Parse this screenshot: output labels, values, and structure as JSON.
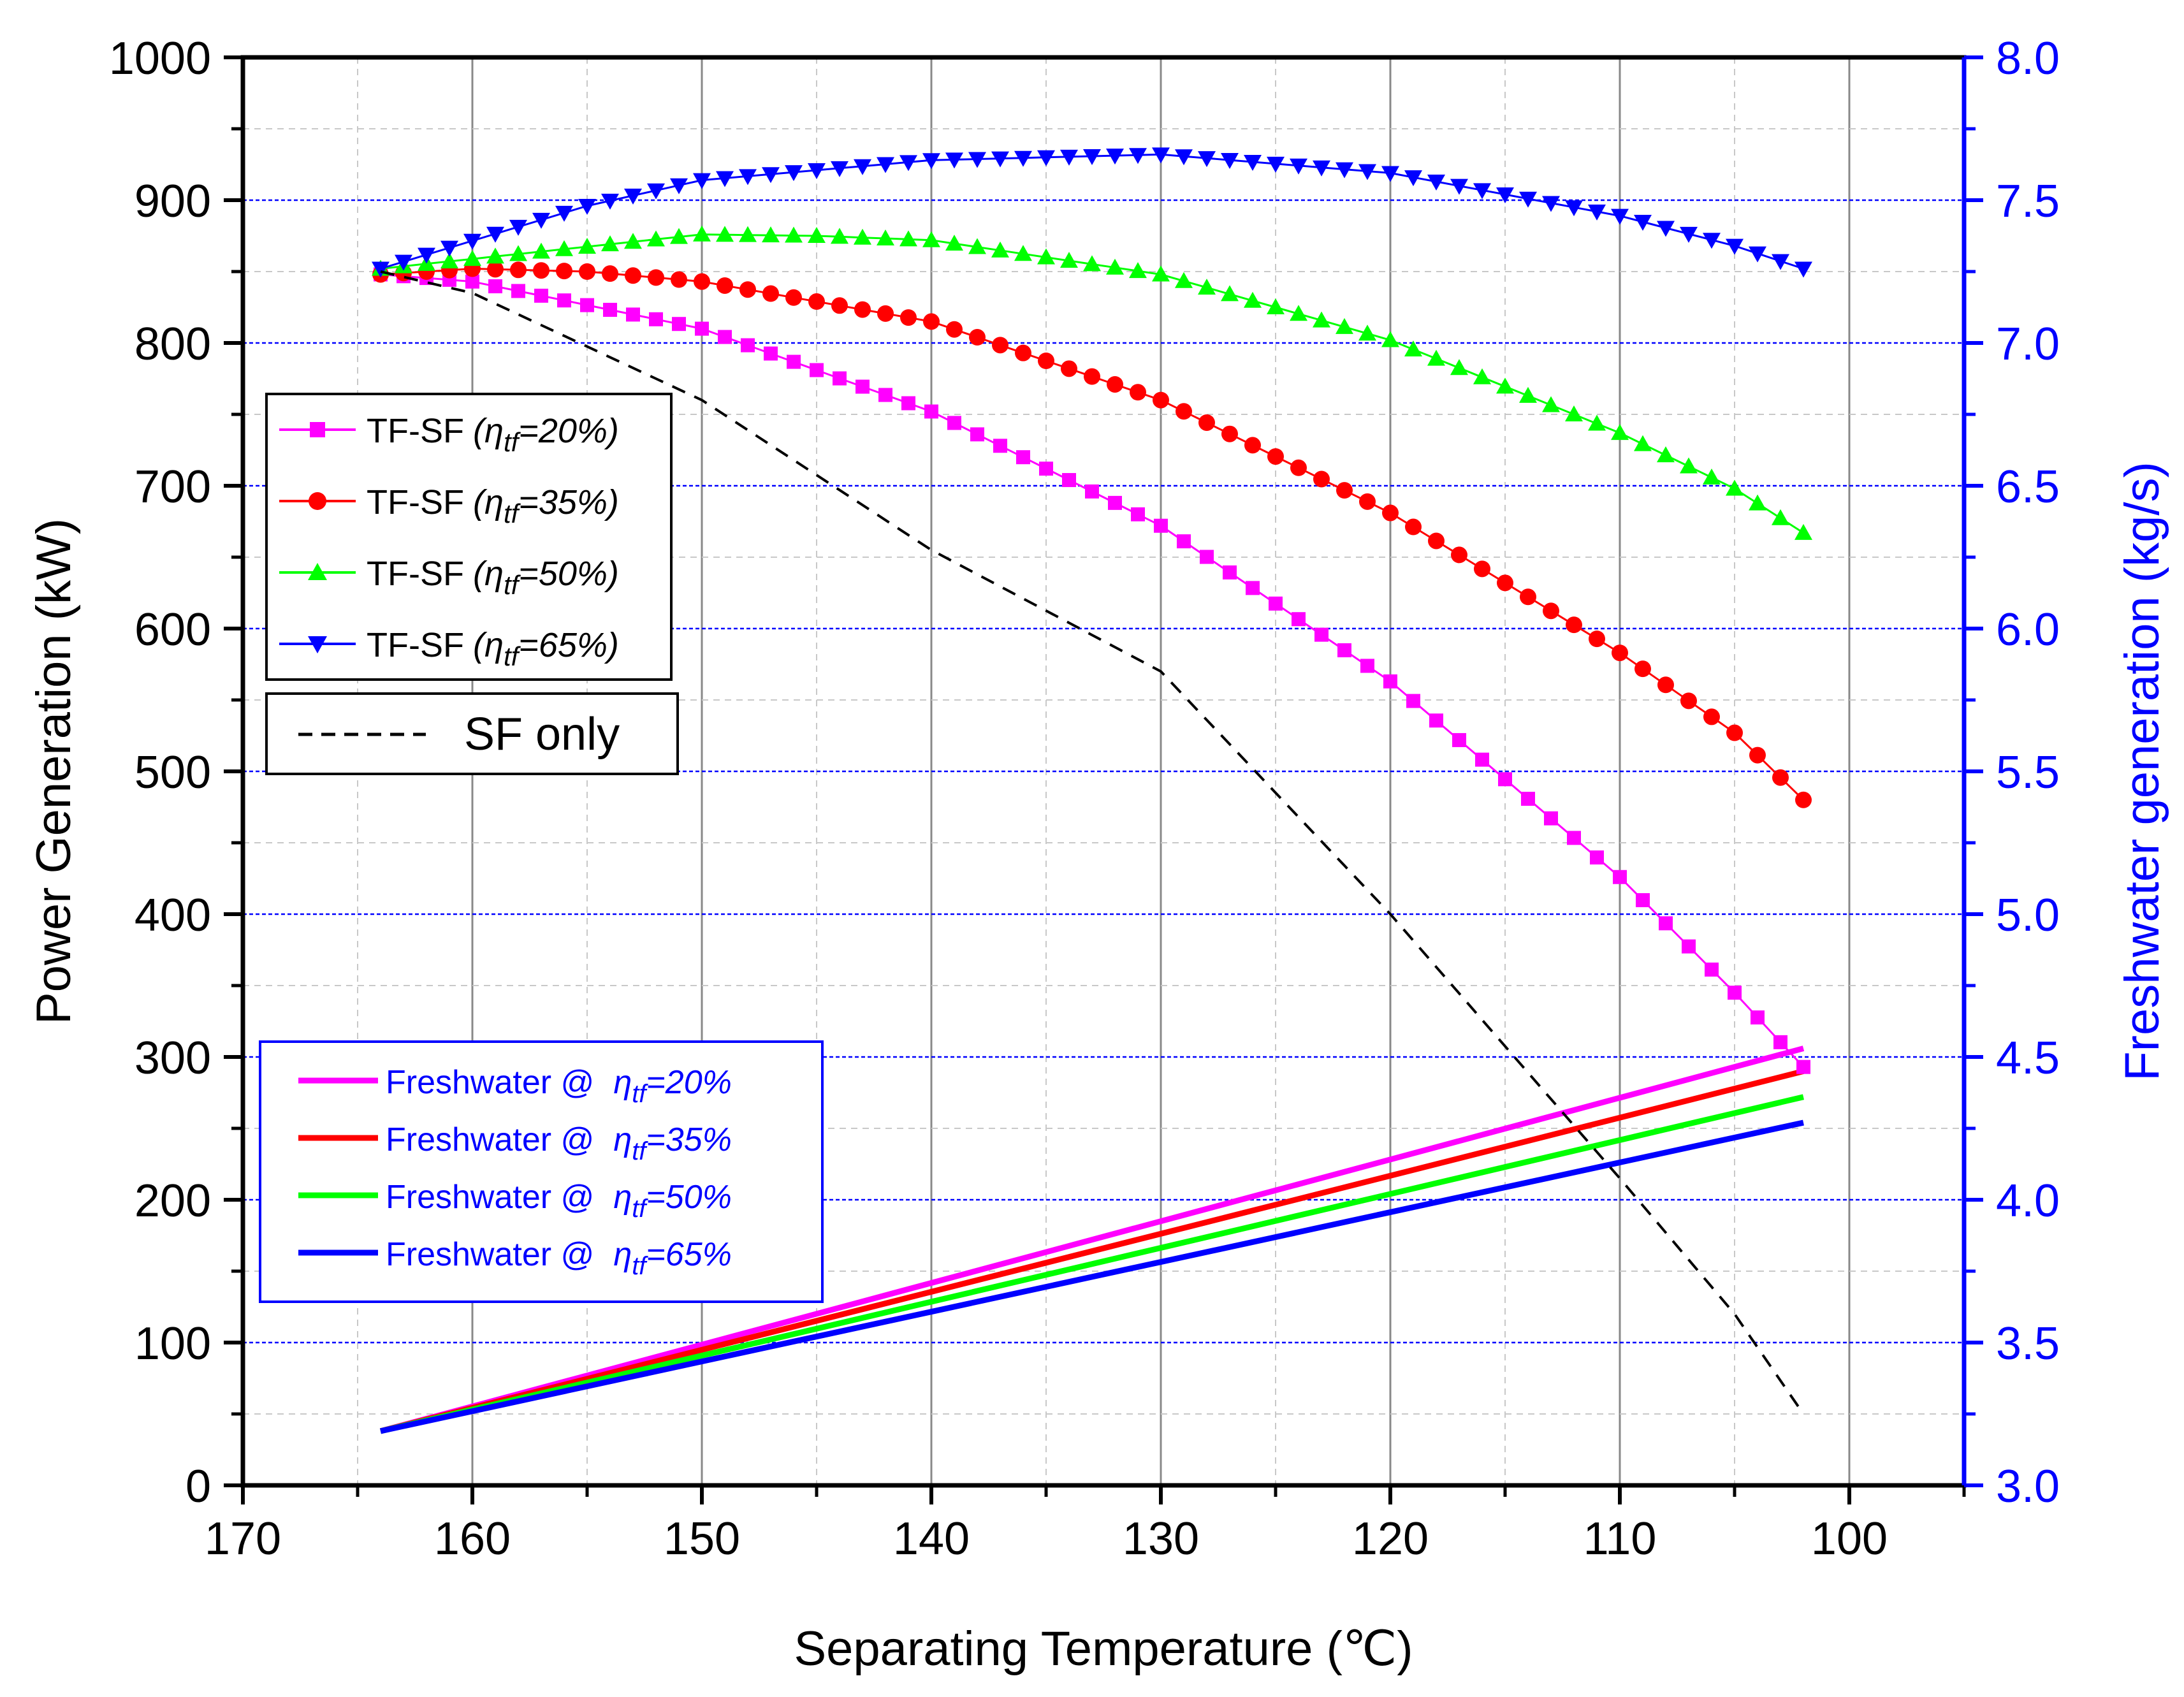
{
  "chart_data": {
    "type": "line",
    "title": "",
    "xlabel": "Separating Temperature (℃)",
    "ylabel": "Power Generation (kW)",
    "y2label": "Freshwater generation (kg/s)",
    "xlim": [
      170,
      95
    ],
    "x_reversed": true,
    "ylim": [
      0,
      1000
    ],
    "y2lim": [
      3.0,
      8.0
    ],
    "xticks": [
      170,
      160,
      150,
      140,
      130,
      120,
      110,
      100
    ],
    "yticks": [
      0,
      100,
      200,
      300,
      400,
      500,
      600,
      700,
      800,
      900,
      1000
    ],
    "y2ticks": [
      "3.0",
      "3.5",
      "4.0",
      "4.5",
      "5.0",
      "5.5",
      "6.0",
      "6.5",
      "7.0",
      "7.5",
      "8.0"
    ],
    "grid": true,
    "colors": {
      "axis": "#000000",
      "right_axis": "#0000ff",
      "grid": "#cccccc",
      "grid_y": "#0000ff",
      "legend2_border": "#0000ff"
    },
    "x_range": {
      "start": 164,
      "end": 102,
      "step": 1
    },
    "power_series": [
      {
        "name": "TF-SF",
        "eta": "η",
        "sub": "tf",
        "pct": "=20%",
        "color": "#ff00ff",
        "marker": "square",
        "axis": "left",
        "anchors": [
          [
            164,
            848
          ],
          [
            160,
            843
          ],
          [
            150,
            810
          ],
          [
            140,
            752
          ],
          [
            130,
            672
          ],
          [
            120,
            563
          ],
          [
            110,
            426
          ],
          [
            105,
            345
          ],
          [
            102,
            293
          ]
        ]
      },
      {
        "name": "TF-SF",
        "eta": "η",
        "sub": "tf",
        "pct": "=35%",
        "color": "#ff0000",
        "marker": "circle",
        "axis": "left",
        "anchors": [
          [
            164,
            848
          ],
          [
            160,
            852
          ],
          [
            155,
            850
          ],
          [
            150,
            843
          ],
          [
            140,
            815
          ],
          [
            130,
            760
          ],
          [
            120,
            681
          ],
          [
            110,
            583
          ],
          [
            105,
            527
          ],
          [
            102,
            480
          ]
        ]
      },
      {
        "name": "TF-SF",
        "eta": "η",
        "sub": "tf",
        "pct": "=50%",
        "color": "#00ff00",
        "marker": "triangle-up",
        "axis": "left",
        "anchors": [
          [
            164,
            852
          ],
          [
            150,
            876
          ],
          [
            145,
            875
          ],
          [
            140,
            872
          ],
          [
            130,
            848
          ],
          [
            120,
            802
          ],
          [
            110,
            737
          ],
          [
            105,
            698
          ],
          [
            102,
            667
          ]
        ]
      },
      {
        "name": "TF-SF",
        "eta": "η",
        "sub": "tf",
        "pct": "=65%",
        "color": "#0000ff",
        "marker": "triangle-down",
        "axis": "left",
        "anchors": [
          [
            164,
            852
          ],
          [
            155,
            896
          ],
          [
            150,
            914
          ],
          [
            140,
            928
          ],
          [
            130,
            932
          ],
          [
            120,
            919
          ],
          [
            110,
            889
          ],
          [
            105,
            868
          ],
          [
            102,
            852
          ]
        ]
      },
      {
        "name": "SF only",
        "color": "#000000",
        "marker": "none",
        "dash": "dashed",
        "axis": "left",
        "anchors": [
          [
            164,
            850
          ],
          [
            160,
            835
          ],
          [
            150,
            760
          ],
          [
            140,
            655
          ],
          [
            130,
            570
          ],
          [
            120,
            400
          ],
          [
            110,
            215
          ],
          [
            105,
            120
          ],
          [
            102,
            50
          ]
        ]
      }
    ],
    "freshwater_series": [
      {
        "name": "Freshwater @",
        "eta": "η",
        "sub": "tf",
        "pct": "=20%",
        "color": "#ff00ff",
        "axis": "right",
        "points": [
          [
            164,
            3.19
          ],
          [
            102,
            4.53
          ]
        ]
      },
      {
        "name": "Freshwater @",
        "eta": "η",
        "sub": "tf",
        "pct": "=35%",
        "color": "#ff0000",
        "axis": "right",
        "points": [
          [
            164,
            3.19
          ],
          [
            102,
            4.45
          ]
        ]
      },
      {
        "name": "Freshwater @",
        "eta": "η",
        "sub": "tf",
        "pct": "=50%",
        "color": "#00ff00",
        "axis": "right",
        "points": [
          [
            164,
            3.19
          ],
          [
            102,
            4.36
          ]
        ]
      },
      {
        "name": "Freshwater @",
        "eta": "η",
        "sub": "tf",
        "pct": "=65%",
        "color": "#0000ff",
        "axis": "right",
        "points": [
          [
            164,
            3.19
          ],
          [
            102,
            4.27
          ]
        ]
      }
    ],
    "legend_power_placement": "upper-left",
    "legend_sf_placement": "left",
    "legend_freshwater_placement": "lower-left"
  }
}
